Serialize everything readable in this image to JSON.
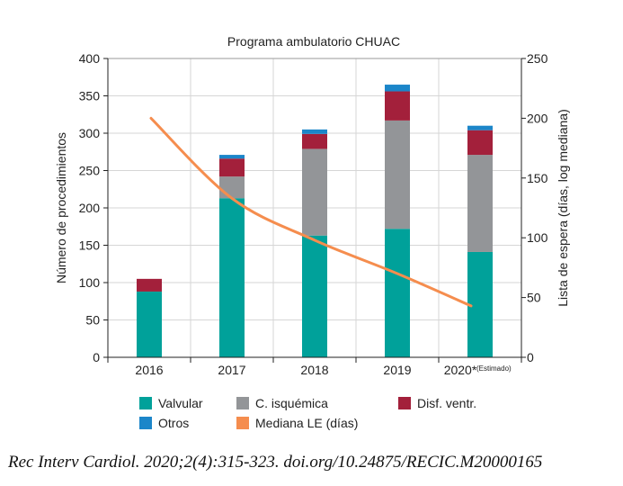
{
  "chart_data": {
    "type": "bar",
    "stacked": true,
    "title": "Programa ambulatorio CHUAC",
    "ylabel": "Número de procedimientos",
    "y2label": "Lista de espera (días, log mediana)",
    "categories": [
      "2016",
      "2017",
      "2018",
      "2019",
      "2020*"
    ],
    "category_notes": [
      "",
      "",
      "",
      "",
      "(Estimado)"
    ],
    "ylim": [
      0,
      400
    ],
    "yticks": [
      "0",
      "50",
      "100",
      "150",
      "200",
      "250",
      "300",
      "350",
      "400"
    ],
    "y2lim": [
      0,
      250
    ],
    "y2ticks": [
      "0",
      "50",
      "100",
      "150",
      "200",
      "250"
    ],
    "grid": true,
    "legend_position": "bottom",
    "series": [
      {
        "name": "Valvular",
        "color": "#00a19a",
        "values": [
          88,
          213,
          163,
          172,
          141
        ]
      },
      {
        "name": "C. isquémica",
        "color": "#939598",
        "values": [
          0,
          29,
          116,
          145,
          130
        ]
      },
      {
        "name": "Disf. ventr.",
        "color": "#a3203b",
        "values": [
          17,
          24,
          20,
          39,
          33
        ]
      },
      {
        "name": "Otros",
        "color": "#1c86c9",
        "values": [
          0,
          5,
          6,
          9,
          6
        ]
      }
    ],
    "line_series": {
      "name": "Mediana LE (días)",
      "color": "#f58d4e",
      "axis": "right",
      "x": [
        2016,
        2017,
        2018,
        2019,
        2020
      ],
      "values": [
        200,
        133,
        98,
        70,
        43
      ]
    }
  },
  "citation": "Rec Interv Cardiol. 2020;2(4):315-323. doi.org/10.24875/RECIC.M20000165"
}
